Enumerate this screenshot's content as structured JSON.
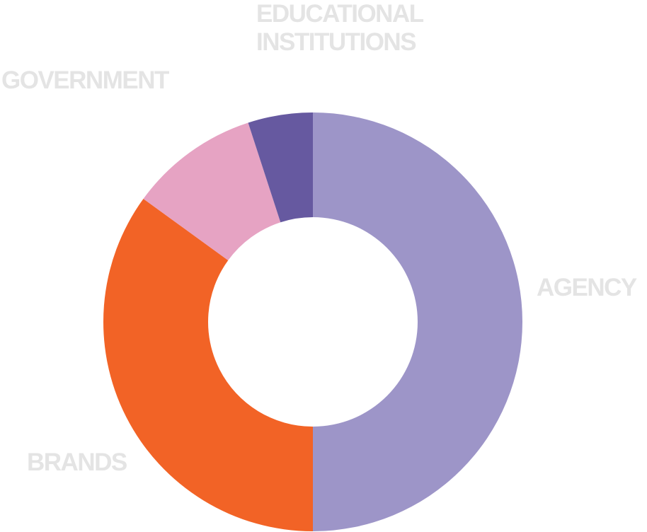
{
  "chart_data": {
    "type": "donut",
    "categories": [
      "AGENCY",
      "BRANDS",
      "GOVERNMENT",
      "EDUCATIONAL INSTITUTIONS"
    ],
    "values": [
      50,
      35,
      10,
      5
    ],
    "colors": [
      "#9d95c8",
      "#f26326",
      "#e6a3c3",
      "#6659a0"
    ]
  }
}
